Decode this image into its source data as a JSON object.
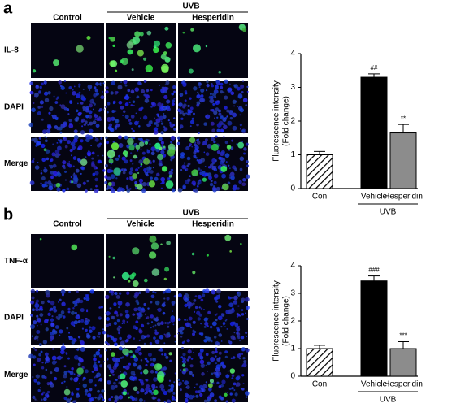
{
  "panels": [
    {
      "label": "a",
      "group_label": "UVB",
      "columns": [
        "Control",
        "Vehicle",
        "Hesperidin"
      ],
      "rows": [
        "IL-8",
        "DAPI",
        "Merge"
      ]
    },
    {
      "label": "b",
      "group_label": "UVB",
      "columns": [
        "Control",
        "Vehicle",
        "Hesperidin"
      ],
      "rows": [
        "TNF-α",
        "DAPI",
        "Merge"
      ]
    }
  ],
  "chart_data": [
    {
      "type": "bar",
      "ylabel": [
        "Fluorescence intensity",
        "(Fold change)"
      ],
      "categories": [
        "Con",
        "Vehicle",
        "Hesperidin"
      ],
      "group_label": "UVB",
      "values": [
        1.0,
        3.3,
        1.65
      ],
      "errors": [
        0.1,
        0.1,
        0.25
      ],
      "annotations": [
        null,
        "##",
        "**"
      ],
      "colors": [
        "#ffffff",
        "#000000",
        "#8c8c8c"
      ],
      "hatch": [
        true,
        false,
        false
      ],
      "ylim": [
        0,
        4
      ],
      "yticks": [
        0,
        1,
        2,
        3,
        4
      ]
    },
    {
      "type": "bar",
      "ylabel": [
        "Fluorescence intensity",
        "(Fold change)"
      ],
      "categories": [
        "Con",
        "Vehicle",
        "Hesperidin"
      ],
      "group_label": "UVB",
      "values": [
        1.0,
        3.45,
        1.0
      ],
      "errors": [
        0.12,
        0.18,
        0.25
      ],
      "annotations": [
        null,
        "###",
        "***"
      ],
      "colors": [
        "#ffffff",
        "#000000",
        "#8c8c8c"
      ],
      "hatch": [
        true,
        false,
        false
      ],
      "ylim": [
        0,
        4
      ],
      "yticks": [
        0,
        1,
        2,
        3,
        4
      ]
    }
  ]
}
